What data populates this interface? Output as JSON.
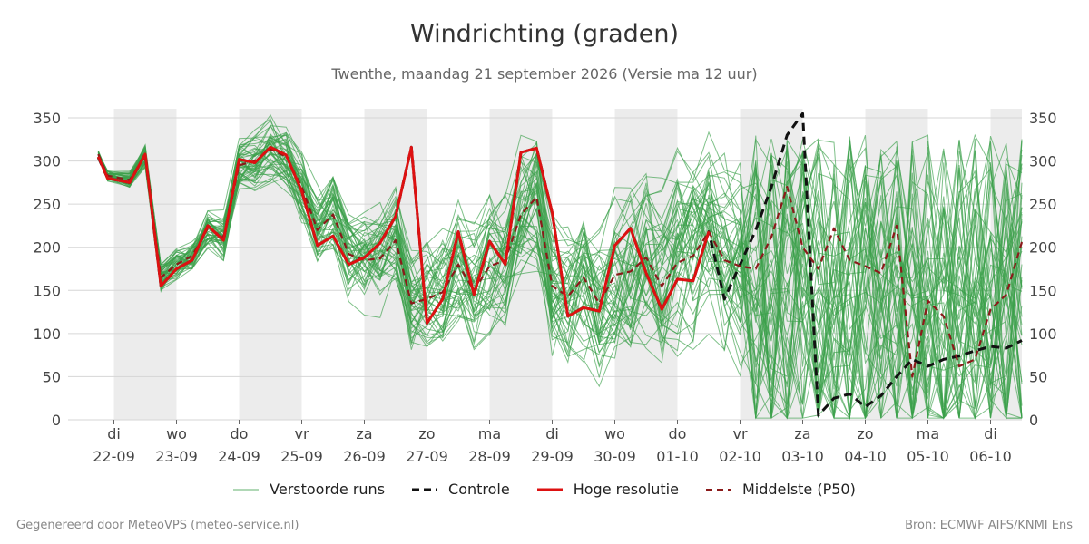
{
  "chart_data": {
    "type": "line",
    "title": "Windrichting (graden)",
    "subtitle": "Twenthe, maandag 21 september 2026 (Versie ma 12 uur)",
    "ylim": [
      0,
      360
    ],
    "yticks": [
      0,
      50,
      100,
      150,
      200,
      250,
      300,
      350
    ],
    "x_day_labels": [
      {
        "day": "di",
        "date": "22-09"
      },
      {
        "day": "wo",
        "date": "23-09"
      },
      {
        "day": "do",
        "date": "24-09"
      },
      {
        "day": "vr",
        "date": "25-09"
      },
      {
        "day": "za",
        "date": "26-09"
      },
      {
        "day": "zo",
        "date": "27-09"
      },
      {
        "day": "ma",
        "date": "28-09"
      },
      {
        "day": "di",
        "date": "29-09"
      },
      {
        "day": "wo",
        "date": "30-09"
      },
      {
        "day": "do",
        "date": "01-10"
      },
      {
        "day": "vr",
        "date": "02-10"
      },
      {
        "day": "za",
        "date": "03-10"
      },
      {
        "day": "zo",
        "date": "04-10"
      },
      {
        "day": "ma",
        "date": "05-10"
      },
      {
        "day": "di",
        "date": "06-10"
      }
    ],
    "night_shading": "alternating days shaded grey",
    "grid": true,
    "legend_position": "bottom",
    "series": [
      {
        "name": "Hoge resolutie",
        "color": "#dd1111",
        "style": "solid",
        "x": [
          -0.25,
          -0.1,
          0.25,
          0.5,
          0.75,
          1,
          1.25,
          1.5,
          1.75,
          2,
          2.25,
          2.5,
          2.75,
          3,
          3.25,
          3.5,
          3.75,
          4,
          4.25,
          4.5,
          4.75,
          5,
          5.25,
          5.5,
          5.75,
          6,
          6.25,
          6.5,
          6.75,
          7,
          7.25,
          7.5,
          7.75,
          8,
          8.25,
          8.5,
          8.75,
          9,
          9.25,
          9.5,
          9.75,
          10
        ],
        "values": [
          305,
          280,
          275,
          308,
          155,
          175,
          185,
          225,
          208,
          302,
          298,
          316,
          307,
          265,
          202,
          213,
          180,
          188,
          205,
          236,
          316,
          112,
          140,
          218,
          145,
          207,
          180,
          310,
          315,
          240,
          120,
          130,
          126,
          202,
          222,
          170,
          128,
          163,
          161,
          218,
          null,
          null
        ]
      },
      {
        "name": "Controle",
        "color": "#111111",
        "style": "dashed",
        "x": [
          -0.25,
          -0.1,
          0.25,
          0.5,
          0.75,
          1,
          1.25,
          1.5,
          1.75,
          2,
          2.25,
          2.5,
          2.75,
          3,
          3.25,
          3.5,
          3.75,
          4,
          4.25,
          4.5,
          4.75,
          5,
          5.25,
          5.5,
          5.75,
          6,
          6.25,
          6.5,
          6.75,
          7,
          7.25,
          7.5,
          7.75,
          8,
          8.25,
          8.5,
          8.75,
          9,
          9.25,
          9.5,
          9.75,
          10,
          10.25,
          10.5,
          10.75,
          11,
          11.25,
          11.5,
          11.75,
          12,
          12.25,
          12.5,
          12.75,
          13,
          13.25,
          13.5,
          13.75,
          14,
          14.25,
          14.5
        ],
        "values": [
          304,
          280,
          275,
          308,
          155,
          175,
          185,
          225,
          208,
          302,
          298,
          316,
          307,
          265,
          202,
          213,
          180,
          188,
          205,
          236,
          316,
          112,
          140,
          218,
          145,
          207,
          180,
          310,
          315,
          240,
          120,
          130,
          126,
          202,
          222,
          170,
          128,
          163,
          161,
          218,
          140,
          180,
          220,
          270,
          330,
          355,
          5,
          25,
          30,
          15,
          28,
          50,
          70,
          62,
          70,
          74,
          80,
          85,
          83,
          92
        ]
      },
      {
        "name": "Middelste (P50)",
        "color": "#8b1a1a",
        "style": "dashed",
        "x": [
          -0.25,
          -0.1,
          0.25,
          0.5,
          0.75,
          1,
          1.25,
          1.5,
          1.75,
          2,
          2.25,
          2.5,
          2.75,
          3,
          3.25,
          3.5,
          3.75,
          4,
          4.25,
          4.5,
          4.75,
          5,
          5.25,
          5.5,
          5.75,
          6,
          6.25,
          6.5,
          6.75,
          7,
          7.25,
          7.5,
          7.75,
          8,
          8.25,
          8.5,
          8.75,
          9,
          9.25,
          9.5,
          9.75,
          10,
          10.25,
          10.5,
          10.75,
          11,
          11.25,
          11.5,
          11.75,
          12,
          12.25,
          12.5,
          12.75,
          13,
          13.25,
          13.5,
          13.75,
          14,
          14.25,
          14.5
        ],
        "values": [
          308,
          283,
          278,
          306,
          165,
          180,
          190,
          222,
          212,
          295,
          300,
          314,
          305,
          270,
          220,
          238,
          192,
          185,
          187,
          208,
          135,
          140,
          148,
          180,
          150,
          178,
          185,
          238,
          258,
          155,
          143,
          165,
          135,
          168,
          172,
          188,
          155,
          182,
          190,
          218,
          185,
          178,
          175,
          212,
          270,
          200,
          175,
          222,
          185,
          178,
          170,
          225,
          50,
          138,
          120,
          62,
          70,
          128,
          145,
          206
        ]
      },
      {
        "name": "Verstoorde runs",
        "color": "#3aa04a",
        "style": "thin",
        "member_count": 50
      }
    ],
    "legend": [
      {
        "label": "Verstoorde runs",
        "color": "#3aa04a",
        "style": "thin"
      },
      {
        "label": "Controle",
        "color": "#111111",
        "style": "dashed"
      },
      {
        "label": "Hoge resolutie",
        "color": "#dd1111",
        "style": "solid"
      },
      {
        "label": "Middelste (P50)",
        "color": "#8b1a1a",
        "style": "dashed"
      }
    ]
  },
  "footer": {
    "left": "Gegenereerd door MeteoVPS (meteo-service.nl)",
    "right": "Bron: ECMWF AIFS/KNMI Ens"
  }
}
